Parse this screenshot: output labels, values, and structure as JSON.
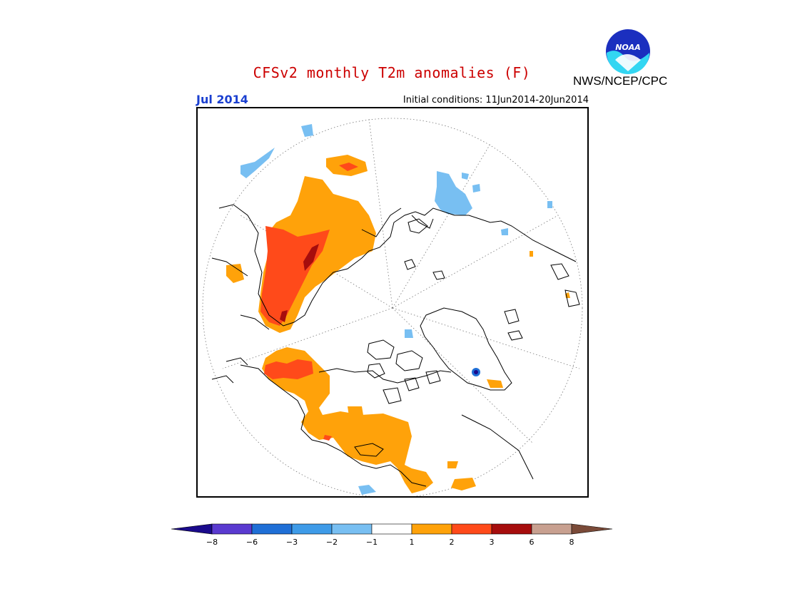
{
  "header": {
    "title": "CFSv2 monthly T2m anomalies (F)",
    "valid_month": "Jul 2014",
    "initial_conditions": "Initial conditions: 11Jun2014-20Jun2014",
    "agency": "NWS/NCEP/CPC",
    "logo_text": "NOAA"
  },
  "colors": {
    "title": "#cc0000",
    "month": "#1a3fd0",
    "text": "#000000"
  },
  "map": {
    "projection": "north polar stereographic",
    "gridlines": "dotted"
  },
  "legend": {
    "ticks": [
      "-8",
      "-6",
      "-3",
      "-2",
      "-1",
      "1",
      "2",
      "3",
      "6",
      "8"
    ],
    "colors": [
      "#1a0a8c",
      "#5a3ad0",
      "#1f6fd6",
      "#3e9be8",
      "#78bff2",
      "#ffffff",
      "#ffa20a",
      "#ff4a1a",
      "#a60d0d",
      "#c8a090",
      "#7a4a38"
    ]
  }
}
